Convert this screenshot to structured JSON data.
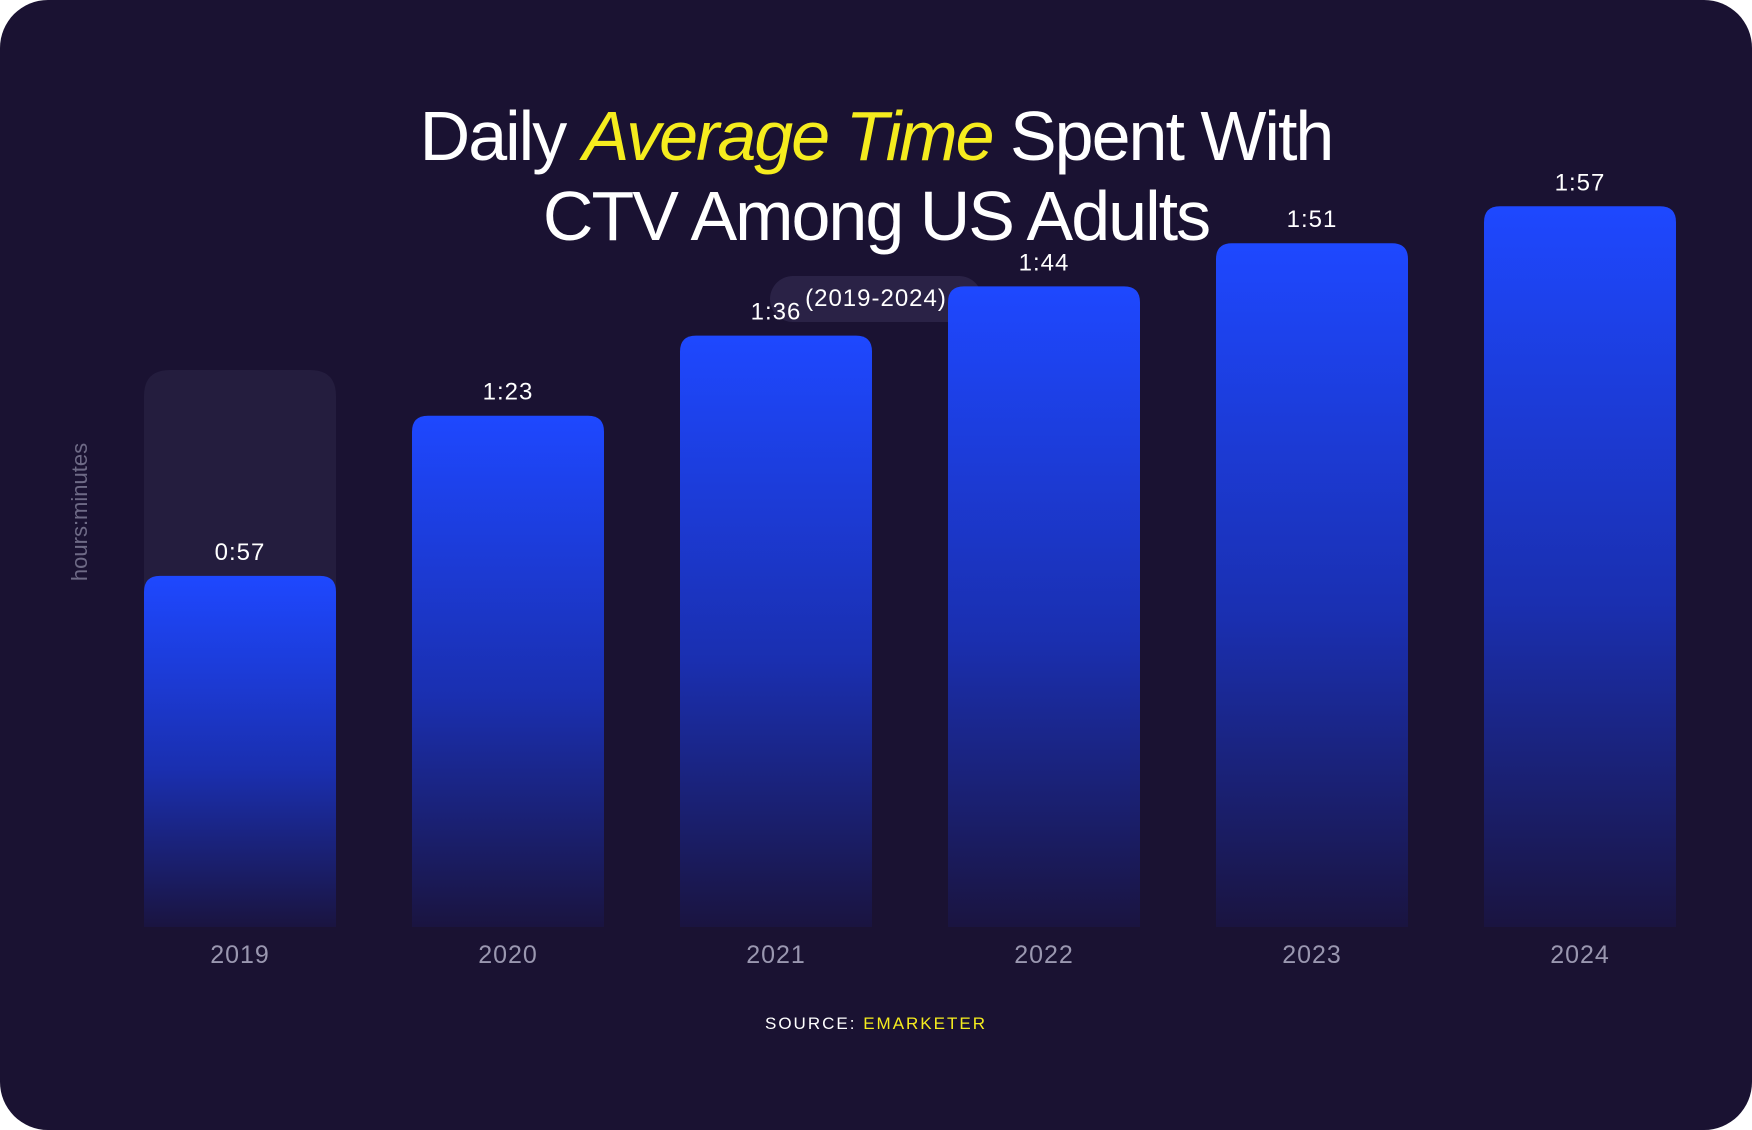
{
  "title": {
    "part1": "Daily ",
    "highlight": "Average Time",
    "part2": " Spent With",
    "line2": "CTV Among US Adults"
  },
  "subtitle": "(2019-2024)",
  "ylabel": "hours:minutes",
  "source": {
    "label": "SOURCE: ",
    "name": "EMARKETER"
  },
  "colors": {
    "background": "#1a1232",
    "bar_top": "#1e48ff",
    "bar_bottom": "#1a1440",
    "highlight": "#f5ec1e",
    "track": "#241d3e"
  },
  "chart_data": {
    "type": "bar",
    "title": "Daily Average Time Spent With CTV Among US Adults",
    "subtitle": "(2019-2024)",
    "ylabel": "hours:minutes",
    "categories": [
      "2019",
      "2020",
      "2021",
      "2022",
      "2023",
      "2024"
    ],
    "values": [
      57,
      83,
      96,
      104,
      111,
      117
    ],
    "value_labels": [
      "0:57",
      "1:23",
      "1:36",
      "1:44",
      "1:51",
      "1:57"
    ],
    "background_tracks": [
      true,
      false,
      true,
      false,
      true,
      false
    ],
    "ylim": [
      0,
      120
    ],
    "grid": false,
    "legend": "none"
  }
}
